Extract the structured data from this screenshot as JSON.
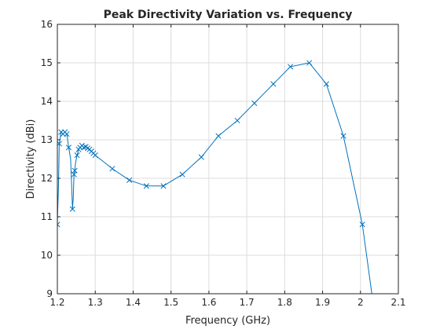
{
  "chart_data": {
    "type": "line",
    "title": "Peak Directivity Variation vs. Frequency",
    "xlabel": "Frequency (GHz)",
    "ylabel": "Directivity (dBi)",
    "xlim": [
      1.2,
      2.1
    ],
    "ylim": [
      9,
      16
    ],
    "xticks": [
      "1.2",
      "1.3",
      "1.4",
      "1.5",
      "1.6",
      "1.7",
      "1.8",
      "1.9",
      "2",
      "2.1"
    ],
    "yticks": [
      "9",
      "10",
      "11",
      "12",
      "13",
      "14",
      "15",
      "16"
    ],
    "grid": true,
    "marker": "x",
    "series": [
      {
        "color": "#0072bd",
        "x": [
          1.2,
          1.201,
          1.203,
          1.205,
          1.21,
          1.215,
          1.22,
          1.225,
          1.23,
          1.235,
          1.24,
          1.242,
          1.244,
          1.246,
          1.248,
          1.252,
          1.256,
          1.26,
          1.265,
          1.27,
          1.275,
          1.28,
          1.285,
          1.29,
          1.295,
          1.3,
          1.345,
          1.39,
          1.435,
          1.48,
          1.53,
          1.58,
          1.625,
          1.675,
          1.72,
          1.77,
          1.815,
          1.865,
          1.91,
          1.955,
          2.005,
          2.03
        ],
        "y": [
          10.8,
          11.2,
          11.8,
          12.9,
          13.2,
          13.15,
          13.2,
          13.15,
          12.8,
          12.5,
          11.2,
          11.5,
          12.1,
          12.2,
          12.4,
          12.6,
          12.75,
          12.8,
          12.85,
          12.8,
          12.82,
          12.78,
          12.75,
          12.7,
          12.65,
          12.6,
          12.25,
          11.95,
          11.8,
          11.8,
          12.1,
          12.55,
          13.1,
          13.5,
          13.95,
          14.45,
          14.9,
          15.0,
          14.45,
          13.1,
          10.8,
          9.0
        ],
        "markers_at_index": [
          0,
          3,
          4,
          5,
          6,
          7,
          8,
          10,
          12,
          13,
          15,
          16,
          17,
          18,
          19,
          20,
          21,
          22,
          23,
          24,
          25,
          26,
          27,
          28,
          29,
          30,
          31,
          32,
          33,
          34,
          35,
          36,
          37,
          38,
          39,
          40
        ]
      }
    ]
  }
}
